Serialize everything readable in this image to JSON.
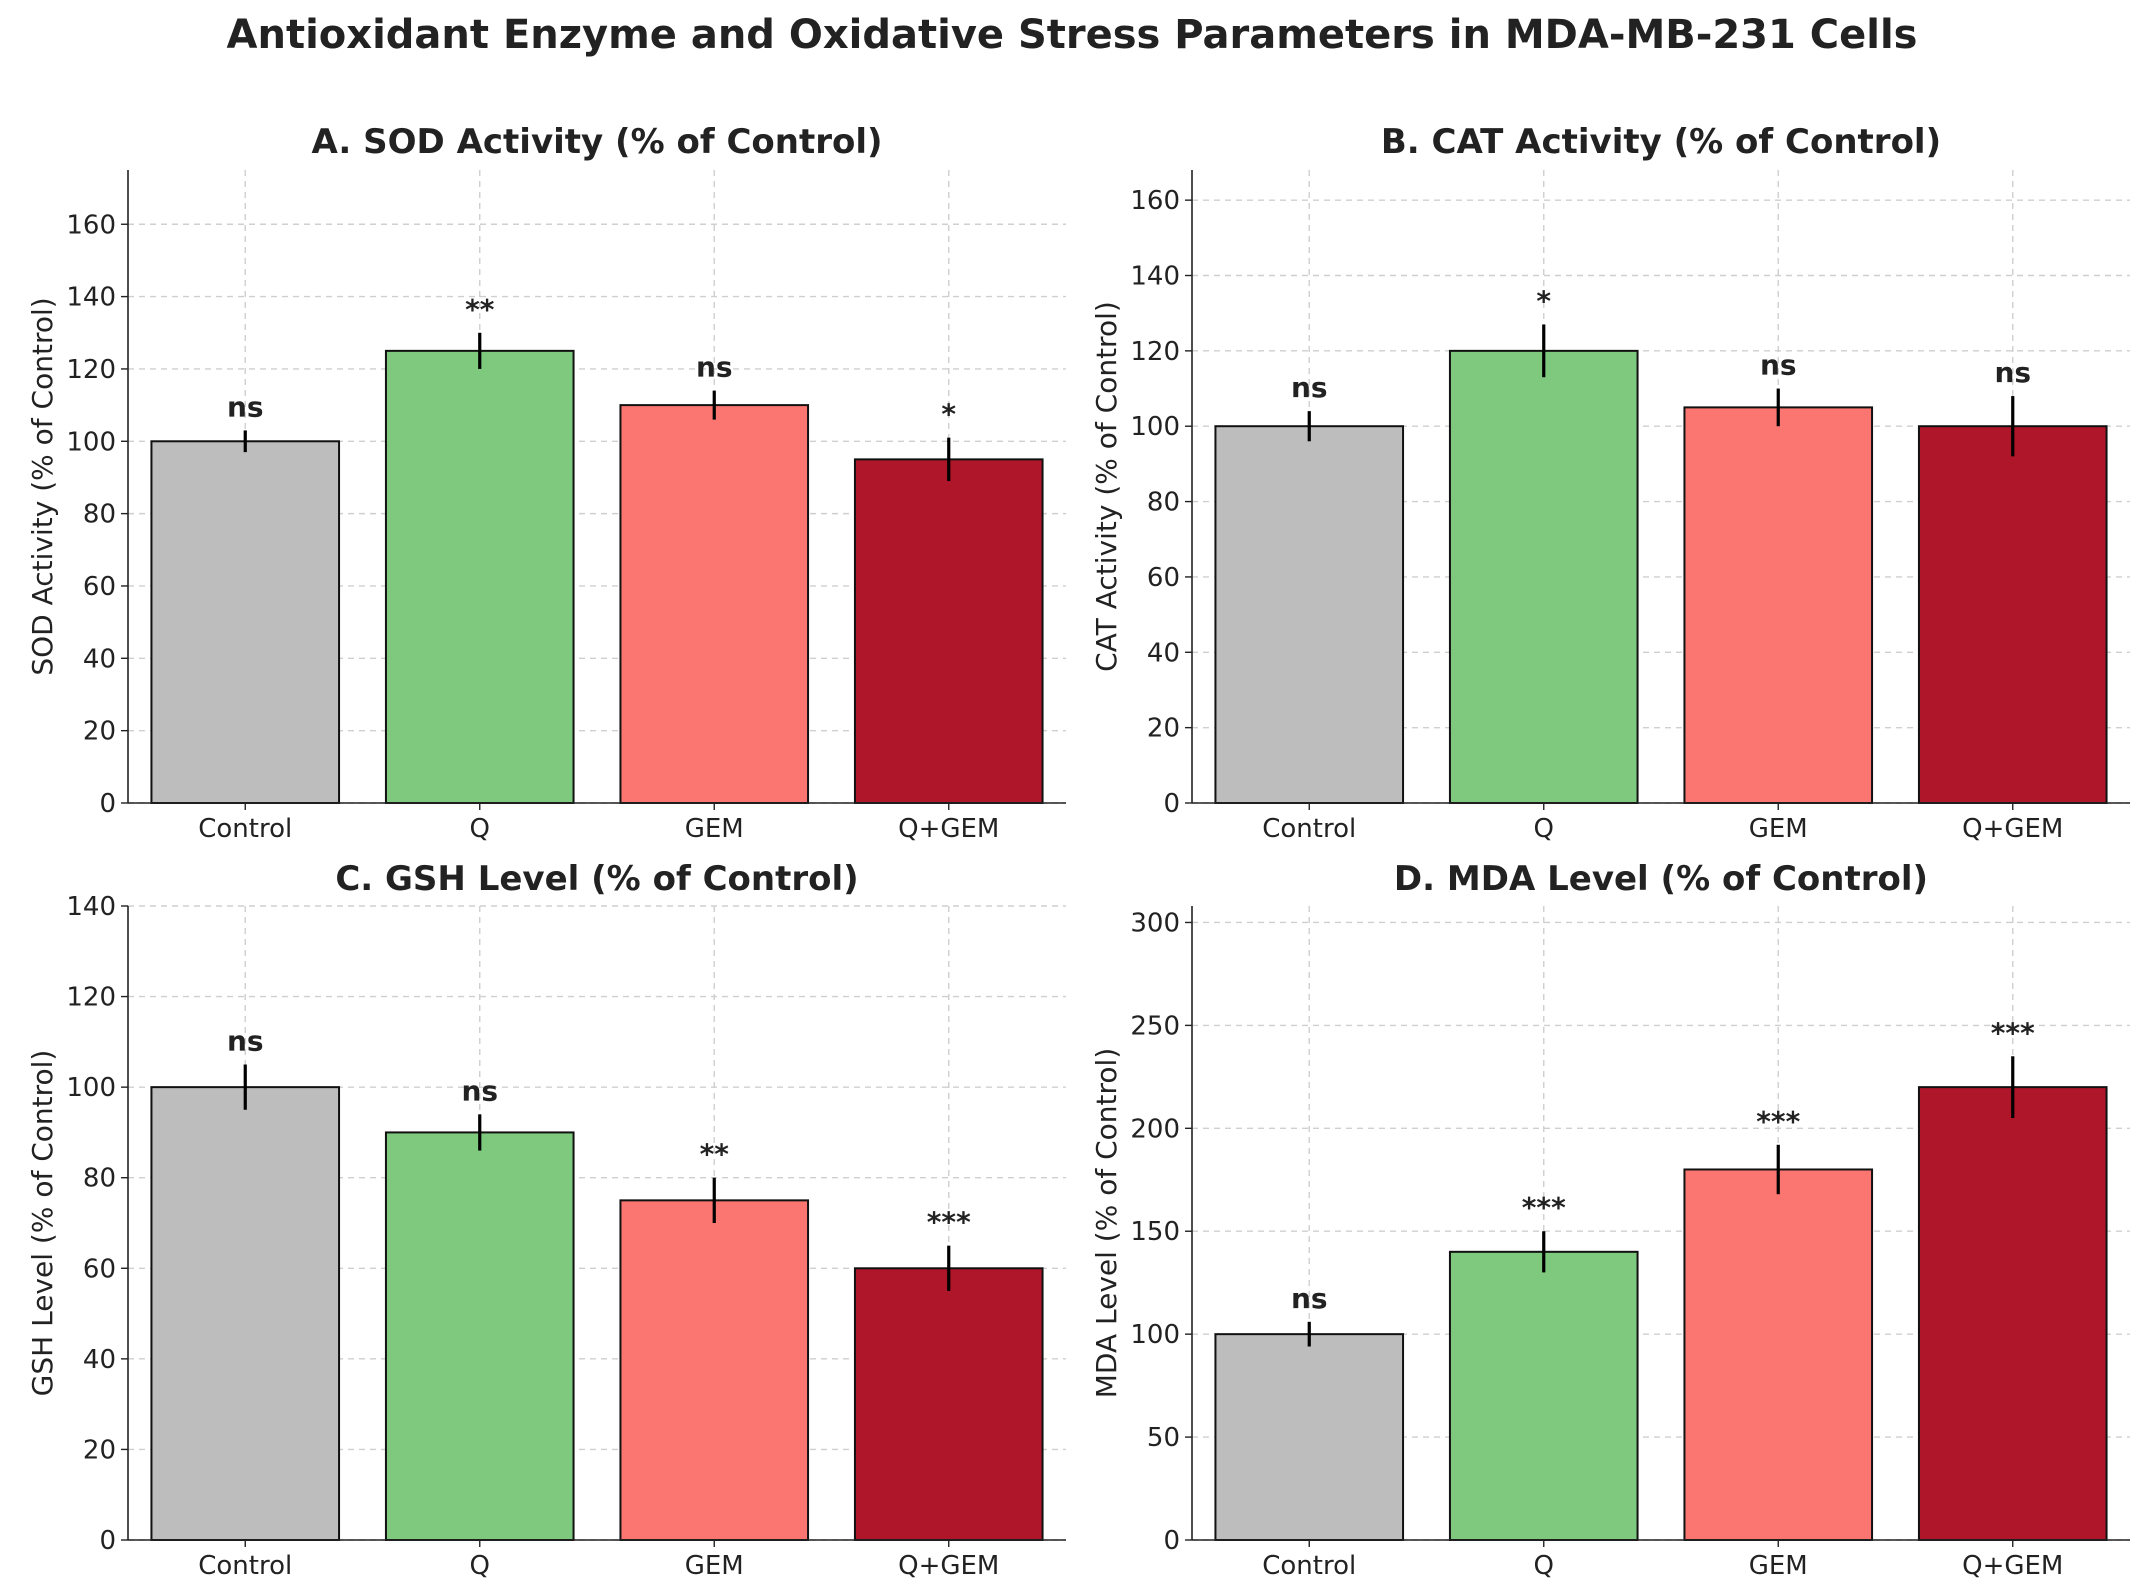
{
  "figure": {
    "title": "Antioxidant Enzyme and Oxidative Stress Parameters in MDA-MB-231 Cells"
  },
  "colors": {
    "bars": [
      "#bdbdbd",
      "#7fc97f",
      "#fb7670",
      "#b0162a"
    ],
    "grid": "#cfcfcf",
    "text": "#222222"
  },
  "chart_data": [
    {
      "type": "bar",
      "title": "A. SOD Activity (% of Control)",
      "xlabel": "",
      "ylabel": "SOD Activity (% of Control)",
      "categories": [
        "Control",
        "Q",
        "GEM",
        "Q+GEM"
      ],
      "values": [
        100,
        125,
        110,
        95
      ],
      "errors": [
        3,
        5,
        4,
        6
      ],
      "significance": [
        "ns",
        "**",
        "ns",
        "*"
      ],
      "ylim": [
        0,
        175
      ],
      "yticks": [
        0,
        20,
        40,
        60,
        80,
        100,
        120,
        140,
        160
      ],
      "grid": true
    },
    {
      "type": "bar",
      "title": "B. CAT Activity (% of Control)",
      "xlabel": "",
      "ylabel": "CAT Activity (% of Control)",
      "categories": [
        "Control",
        "Q",
        "GEM",
        "Q+GEM"
      ],
      "values": [
        100,
        120,
        105,
        100
      ],
      "errors": [
        4,
        7,
        5,
        8
      ],
      "significance": [
        "ns",
        "*",
        "ns",
        "ns"
      ],
      "ylim": [
        0,
        168
      ],
      "yticks": [
        0,
        20,
        40,
        60,
        80,
        100,
        120,
        140,
        160
      ],
      "grid": true
    },
    {
      "type": "bar",
      "title": "C. GSH Level (% of Control)",
      "xlabel": "",
      "ylabel": "GSH Level (% of Control)",
      "categories": [
        "Control",
        "Q",
        "GEM",
        "Q+GEM"
      ],
      "values": [
        100,
        90,
        75,
        60
      ],
      "errors": [
        5,
        4,
        5,
        5
      ],
      "significance": [
        "ns",
        "ns",
        "**",
        "***"
      ],
      "ylim": [
        0,
        140
      ],
      "yticks": [
        0,
        20,
        40,
        60,
        80,
        100,
        120,
        140
      ],
      "grid": true
    },
    {
      "type": "bar",
      "title": "D. MDA Level (% of Control)",
      "xlabel": "",
      "ylabel": "MDA Level (% of Control)",
      "categories": [
        "Control",
        "Q",
        "GEM",
        "Q+GEM"
      ],
      "values": [
        100,
        140,
        180,
        220
      ],
      "errors": [
        6,
        10,
        12,
        15
      ],
      "significance": [
        "ns",
        "***",
        "***",
        "***"
      ],
      "ylim": [
        0,
        308
      ],
      "yticks": [
        0,
        50,
        100,
        150,
        200,
        250,
        300
      ],
      "grid": true
    }
  ]
}
